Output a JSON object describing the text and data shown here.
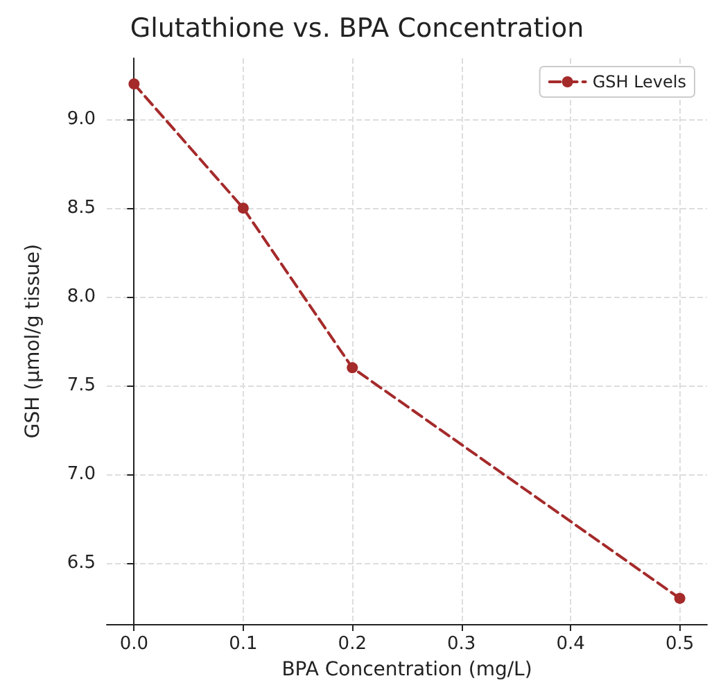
{
  "chart_data": {
    "type": "line",
    "title": "Glutathione vs. BPA Concentration",
    "xlabel": "BPA Concentration (mg/L)",
    "ylabel": "GSH (μmol/g tissue)",
    "x": [
      0,
      0.1,
      0.2,
      0.5
    ],
    "series": [
      {
        "name": "GSH Levels",
        "color": "#a52a2a",
        "values": [
          9.2,
          8.5,
          7.6,
          6.3
        ]
      }
    ],
    "xlim": [
      -0.025,
      0.525
    ],
    "xticks": [
      {
        "value": 0,
        "label": "0.0"
      },
      {
        "value": 0.1,
        "label": "0.1"
      },
      {
        "value": 0.2,
        "label": "0.2"
      },
      {
        "value": 0.3,
        "label": "0.3"
      },
      {
        "value": 0.4,
        "label": "0.4"
      },
      {
        "value": 0.5,
        "label": "0.5"
      }
    ],
    "ylim": [
      6.155,
      9.345
    ],
    "yticks": [
      {
        "value": 6.5,
        "label": "6.5"
      },
      {
        "value": 7,
        "label": "7.0"
      },
      {
        "value": 7.5,
        "label": "7.5"
      },
      {
        "value": 8,
        "label": "8.0"
      },
      {
        "value": 8.5,
        "label": "8.5"
      },
      {
        "value": 9,
        "label": "9.0"
      }
    ],
    "grid": true,
    "legend": "top right",
    "marker": "circle",
    "line_style": "dashed"
  }
}
